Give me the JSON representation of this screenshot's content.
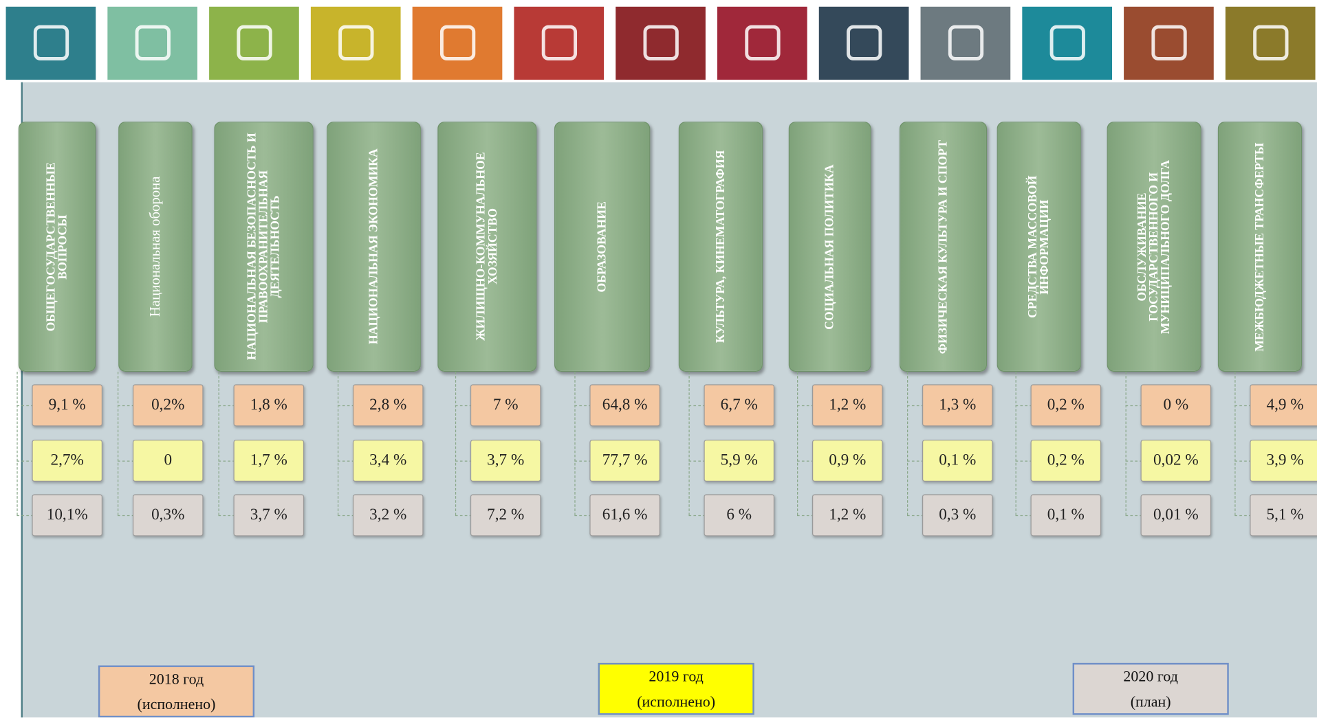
{
  "columns": [
    {
      "label": "ОБЩЕГОСУДАРСТВЕННЫЕ ВОПРОСЫ",
      "values": [
        "9,1 %",
        "2,7%",
        "10,1%"
      ]
    },
    {
      "label": "Национальная оборона",
      "values": [
        "0,2%",
        "0",
        "0,3%"
      ]
    },
    {
      "label": "НАЦИОНАЛЬНАЯ БЕЗОПАСНОСТЬ И ПРАВООХРАНИТЕЛЬНАЯ ДЕЯТЕЛЬНОСТЬ",
      "values": [
        "1,8 %",
        "1,7 %",
        "3,7 %"
      ]
    },
    {
      "label": "НАЦИОНАЛЬНАЯ ЭКОНОМИКА",
      "values": [
        "2,8 %",
        "3,4 %",
        "3,2 %"
      ]
    },
    {
      "label": "ЖИЛИЩНО-КОММУНАЛЬНОЕ ХОЗЯЙСТВО",
      "values": [
        "7 %",
        "3,7 %",
        "7,2 %"
      ]
    },
    {
      "label": "ОБРАЗОВАНИЕ",
      "values": [
        "64,8 %",
        "77,7 %",
        "61,6 %"
      ]
    },
    {
      "label": "КУЛЬТУРА, КИНЕМАТОГРАФИЯ",
      "values": [
        "6,7 %",
        "5,9 %",
        "6 %"
      ]
    },
    {
      "label": "СОЦИАЛЬНАЯ ПОЛИТИКА",
      "values": [
        "1,2 %",
        "0,9 %",
        "1,2 %"
      ]
    },
    {
      "label": "ФИЗИЧЕСКАЯ КУЛЬТУРА И СПОРТ",
      "values": [
        "1,3 %",
        "0,1 %",
        "0,3 %"
      ]
    },
    {
      "label": "СРЕДСТВА МАССОВОЙ ИНФОРМАЦИИ",
      "values": [
        "0,2 %",
        "0,2 %",
        "0,1 %"
      ]
    },
    {
      "label": "ОБСЛУЖИВАНИЕ ГОСУДАРСТВЕННОГО И МУНИЦИПАЛЬНОГО ДОЛГА",
      "values": [
        "0 %",
        "0,02 %",
        "0,01 %"
      ]
    },
    {
      "label": "МЕЖБЮДЖЕТНЫЕ ТРАНСФЕРТЫ",
      "values": [
        "4,9 %",
        "3,9 %",
        "5,1 %"
      ]
    }
  ],
  "legend": [
    {
      "lines": [
        "2018 год",
        "(исполнено)"
      ],
      "color": "#f4c8a2"
    },
    {
      "lines": [
        "2019 год",
        "(исполнено)"
      ],
      "color": "#ffff00"
    },
    {
      "lines": [
        "2020 год",
        "(план)"
      ],
      "color": "#dcd6d2"
    }
  ]
}
